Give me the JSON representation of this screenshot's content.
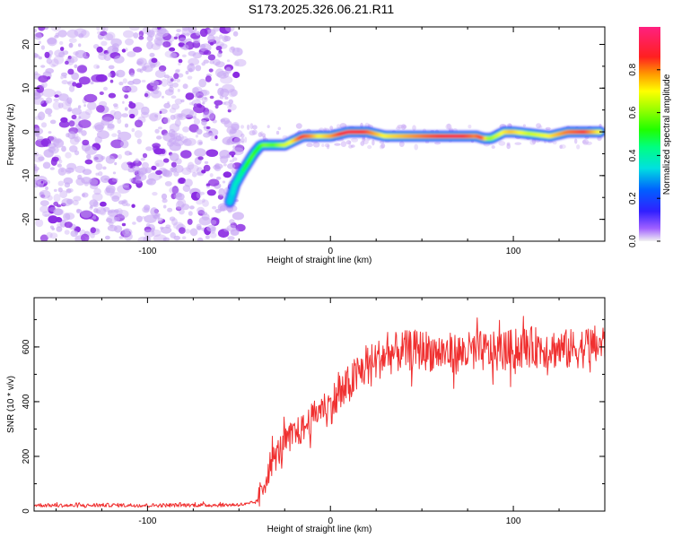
{
  "title": "S173.2025.326.06.21.R11",
  "colors": {
    "snr_line": "#f03030",
    "noise_purple": "#8a2be2",
    "text": "#000000"
  },
  "chart_data": [
    {
      "type": "heatmap",
      "name": "spectrogram",
      "xlabel": "Height of straight line (km)",
      "ylabel": "Frequency (Hz)",
      "xlim": [
        -162,
        150
      ],
      "ylim": [
        -25,
        24
      ],
      "xticks": [
        -100,
        0,
        100
      ],
      "xtick_labels": [
        "-100",
        "0",
        "100"
      ],
      "yticks": [
        -20,
        -10,
        0,
        10,
        20
      ],
      "ytick_labels": [
        "-20",
        "-10",
        "0",
        "10",
        "20"
      ],
      "noise_region_x": [
        -162,
        -52
      ],
      "ridge": {
        "x": [
          -55,
          -52,
          -48,
          -45,
          -42,
          -38,
          -35,
          -30,
          -25,
          -20,
          -15,
          -10,
          -5,
          0,
          10,
          20,
          30,
          40,
          50,
          60,
          70,
          80,
          84,
          88,
          95,
          100,
          110,
          120,
          130,
          140,
          148
        ],
        "y": [
          -16,
          -12,
          -9,
          -7,
          -5,
          -3,
          -3,
          -3,
          -3,
          -2,
          -1,
          -1,
          -1,
          -1,
          0,
          0,
          -1,
          -1,
          -1,
          -1,
          -1,
          -1,
          -1.5,
          -1.5,
          0,
          0,
          -0.5,
          -1,
          0,
          0,
          0
        ],
        "amplitude": [
          0.3,
          0.35,
          0.4,
          0.5,
          0.55,
          0.5,
          0.6,
          0.55,
          0.65,
          0.7,
          0.85,
          0.8,
          0.7,
          0.75,
          0.9,
          0.85,
          0.7,
          0.75,
          0.8,
          0.85,
          0.9,
          0.8,
          0.85,
          0.6,
          0.7,
          0.75,
          0.65,
          0.7,
          0.8,
          0.85,
          0.7
        ]
      },
      "colorbar": {
        "label": "Normalized spectral amplitude",
        "range": [
          0,
          1
        ],
        "ticks": [
          0.0,
          0.2,
          0.4,
          0.6,
          0.8
        ],
        "tick_labels": [
          "0.0",
          "0.2",
          "0.4",
          "0.6",
          "0.8"
        ]
      }
    },
    {
      "type": "line",
      "name": "snr",
      "xlabel": "Height of straight line (km)",
      "ylabel": "SNR (10 * v/v)",
      "xlim": [
        -162,
        150
      ],
      "ylim": [
        0,
        780
      ],
      "xticks": [
        -100,
        0,
        100
      ],
      "xtick_labels": [
        "-100",
        "0",
        "100"
      ],
      "yticks": [
        0,
        200,
        400,
        600
      ],
      "ytick_labels": [
        "0",
        "200",
        "400",
        "600"
      ],
      "series": [
        {
          "name": "SNR",
          "x": [
            -162,
            -140,
            -120,
            -100,
            -80,
            -60,
            -45,
            -40,
            -38,
            -35,
            -33,
            -30,
            -25,
            -20,
            -15,
            -10,
            -5,
            0,
            5,
            10,
            15,
            20,
            25,
            30,
            40,
            50,
            60,
            70,
            80,
            90,
            100,
            110,
            120,
            130,
            140,
            150
          ],
          "values": [
            22,
            20,
            22,
            21,
            22,
            22,
            25,
            35,
            60,
            130,
            170,
            200,
            250,
            280,
            300,
            340,
            380,
            390,
            420,
            460,
            500,
            530,
            550,
            570,
            585,
            590,
            580,
            575,
            585,
            580,
            590,
            600,
            595,
            590,
            600,
            610
          ]
        }
      ]
    }
  ]
}
